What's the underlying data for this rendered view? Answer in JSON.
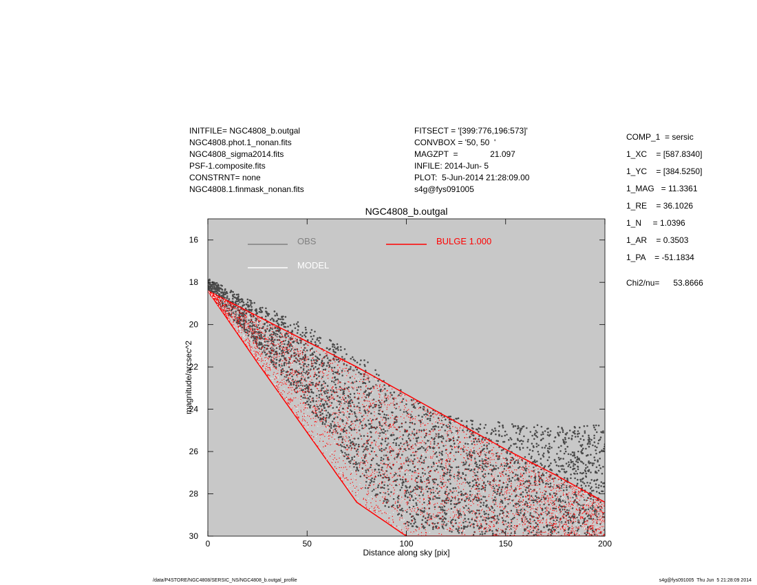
{
  "header_left": [
    "INITFILE= NGC4808_b.outgal",
    "NGC4808.phot.1_nonan.fits",
    "NGC4808_sigma2014.fits",
    "PSF-1.composite.fits",
    "CONSTRNT= none",
    "NGC4808.1.finmask_nonan.fits"
  ],
  "header_mid": [
    "FITSECT = '[399:776,196:573]'",
    "CONVBOX = '50, 50  '",
    "MAGZPT  =              21.097",
    "INFILE: 2014-Jun- 5",
    "PLOT:  5-Jun-2014 21:28:09.00",
    "s4g@fys091005"
  ],
  "params": [
    {
      "label": "COMP_1  = sersic",
      "extra_gap": false
    },
    {
      "label": "1_XC    = [587.8340]",
      "extra_gap": false
    },
    {
      "label": "1_YC    = [384.5250]",
      "extra_gap": false
    },
    {
      "label": "1_MAG   = 11.3361",
      "extra_gap": false
    },
    {
      "label": "1_RE    = 36.1026",
      "extra_gap": false
    },
    {
      "label": "1_N     = 1.0396",
      "extra_gap": false
    },
    {
      "label": "1_AR    = 0.3503",
      "extra_gap": false
    },
    {
      "label": "1_PA    = -51.1834",
      "extra_gap": false
    },
    {
      "label": "Chi2/nu=      53.8666",
      "extra_gap": true
    }
  ],
  "footer": {
    "left": "/data/P4STORE/NGC4808/SERSIC_NS/NGC4808_b.outgal_profile",
    "right": "s4g@fys091005  Thu Jun  5 21:28:09 2014"
  },
  "colors": {
    "plot_bg": "#c8c8c8",
    "obs": "#4a4a4a",
    "obs_legend": "#808080",
    "model": "#ffffff",
    "bulge": "#ff0000"
  },
  "chart_data": {
    "type": "scatter",
    "title": "NGC4808_b.outgal",
    "xlabel": "Distance along sky [pix]",
    "ylabel": "magnitude/arcsec^2",
    "xlim": [
      0,
      200
    ],
    "ylim": [
      30,
      15
    ],
    "y_inverted": true,
    "grid": false,
    "legend_placement": "top-left",
    "xticks": [
      0,
      50,
      100,
      150,
      200
    ],
    "yticks": [
      16,
      18,
      20,
      22,
      24,
      26,
      28,
      30
    ],
    "legend": [
      {
        "name": "OBS",
        "color": "#808080"
      },
      {
        "name": "MODEL",
        "color": "#ffffff"
      },
      {
        "name": "BULGE  1.000",
        "color": "#ff0000"
      }
    ],
    "series": [
      {
        "name": "OBS",
        "envelope_x": [
          0,
          20,
          40,
          60,
          80,
          100,
          120,
          140,
          160,
          180,
          200
        ],
        "bright_edge_y": [
          17.8,
          18.8,
          19.6,
          20.6,
          21.7,
          23.3,
          24.3,
          24.6,
          24.6,
          24.8,
          24.7
        ],
        "faint_edge_y": [
          18.5,
          20.5,
          22.7,
          25.0,
          27.8,
          29.5,
          29.8,
          30.0,
          30.0,
          30.0,
          30.0
        ]
      },
      {
        "name": "BULGE  1.000",
        "envelope_x": [
          0,
          25,
          50,
          75,
          100,
          125,
          150,
          175,
          200
        ],
        "bright_edge_y": [
          18.4,
          19.6,
          20.8,
          22.0,
          23.3,
          24.6,
          25.9,
          27.1,
          28.4
        ],
        "faint_edge_y": [
          18.4,
          21.8,
          25.1,
          28.4,
          30.0,
          30.0,
          30.0,
          30.0,
          30.0
        ]
      }
    ]
  }
}
